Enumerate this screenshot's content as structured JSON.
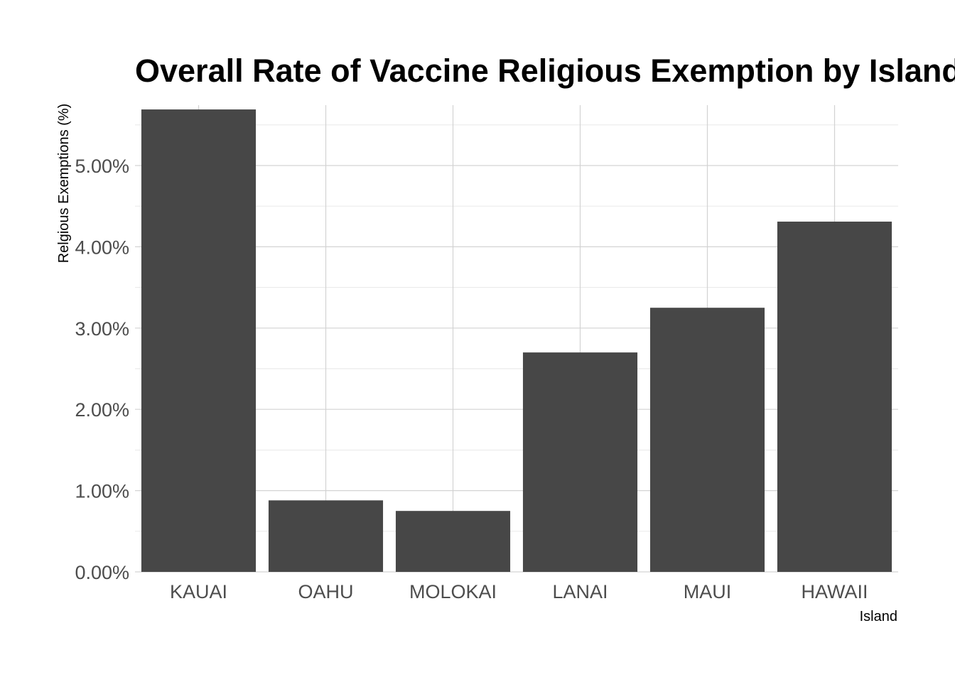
{
  "chart_data": {
    "type": "bar",
    "title": "Overall Rate of Vaccine Religious Exemption by Island",
    "xlabel": "Island",
    "ylabel": "Relgious Exemptions (%)",
    "categories": [
      "KAUAI",
      "OAHU",
      "MOLOKAI",
      "LANAI",
      "MAUI",
      "HAWAII"
    ],
    "values": [
      5.69,
      0.88,
      0.75,
      2.7,
      3.25,
      4.31
    ],
    "y_ticks": [
      "0.00%",
      "1.00%",
      "2.00%",
      "3.00%",
      "4.00%",
      "5.00%"
    ],
    "ylim": [
      0,
      5.75
    ],
    "grid": true,
    "legend": "none",
    "colors": {
      "bar": "#474747",
      "grid_major": "#d3d3d3",
      "grid_minor": "#e6e6e6"
    }
  }
}
